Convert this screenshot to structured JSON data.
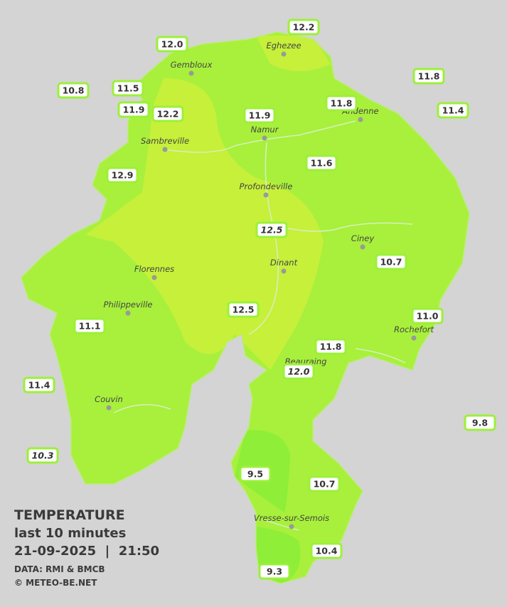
{
  "title": "TEMPERATURE",
  "subtitle": "last 10 minutes",
  "datetime": "21-09-2025  |  21:50",
  "source": "DATA: RMI & BMCB",
  "copyright": "© METEO-BE.NET",
  "towns": [
    "Eghezee",
    "Gembloux",
    "Namur",
    "Andenne",
    "Sambreville",
    "Profondeville",
    "Ciney",
    "Dinant",
    "Florennes",
    "Philippeville",
    "Rochefort",
    "Beauraing",
    "Couvin",
    "Vresse-sur-Semois"
  ],
  "readings": [
    "12.2",
    "12.0",
    "10.8",
    "11.5",
    "11.8",
    "11.9",
    "12.2",
    "11.9",
    "11.8",
    "11.4",
    "11.6",
    "12.9",
    "12.5",
    "10.7",
    "12.5",
    "11.0",
    "11.1",
    "11.8",
    "12.0",
    "11.4",
    "9.8",
    "10.3",
    "9.5",
    "10.7",
    "10.4",
    "9.3"
  ]
}
